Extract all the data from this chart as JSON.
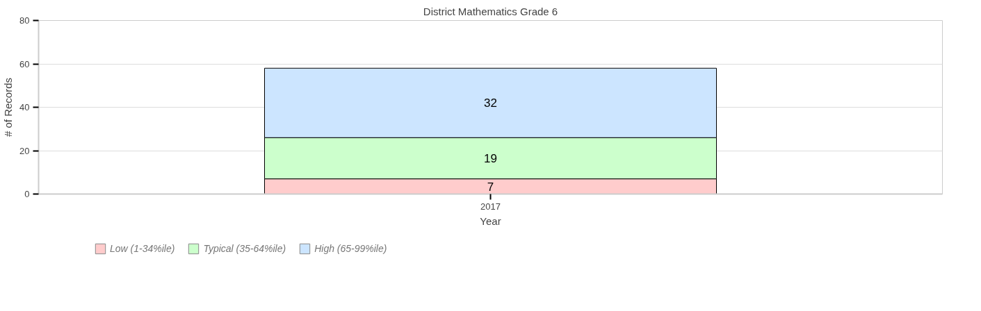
{
  "chart_data": {
    "type": "bar",
    "title": "District Mathematics Grade 6",
    "xlabel": "Year",
    "ylabel": "# of Records",
    "categories": [
      "2017"
    ],
    "series": [
      {
        "name": "Low (1-34%ile)",
        "color": "#ffcccc",
        "values": [
          7
        ]
      },
      {
        "name": "Typical (35-64%ile)",
        "color": "#ccffcc",
        "values": [
          19
        ]
      },
      {
        "name": "High (65-99%ile)",
        "color": "#cce5ff",
        "values": [
          32
        ]
      }
    ],
    "stacked": true,
    "ylim": [
      0,
      80
    ],
    "yticks": [
      0,
      20,
      40,
      60,
      80
    ],
    "grid": "y",
    "legend": "bottom",
    "data_labels": true
  }
}
